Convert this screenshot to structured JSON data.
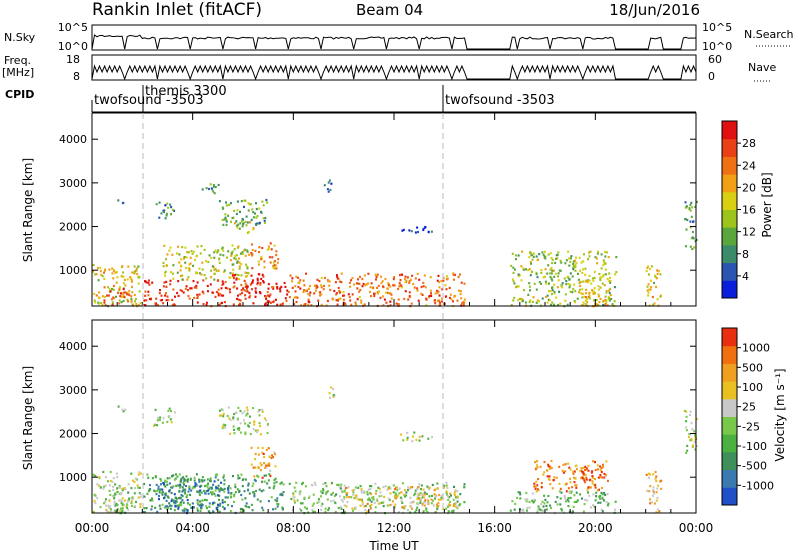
{
  "header": {
    "station": "Rankin Inlet (fitACF)",
    "beam": "Beam 04",
    "date": "18/Jun/2016"
  },
  "top_panels": {
    "nsky_label": "N.Sky",
    "nsky_ticks": [
      "10^5",
      "10^0"
    ],
    "nsearch_label": "N.Search",
    "nsearch_ticks": [
      "10^5",
      "10^0"
    ],
    "freq_label_1": "Freq.",
    "freq_label_2": "[MHz]",
    "freq_ticks": [
      "18",
      "8"
    ],
    "nave_label": "Nave",
    "nave_ticks": [
      "60",
      "0"
    ],
    "cpid_label": "CPID",
    "cpid_segments": [
      {
        "name": "twofsound -3503",
        "start_hour": 0.0
      },
      {
        "name": "themis 3300",
        "start_hour": 2.0
      },
      {
        "name": "twofsound -3503",
        "start_hour": 14.0
      }
    ]
  },
  "chart_data": [
    {
      "type": "heatmap",
      "name": "power",
      "ylabel": "Slant Range [km]",
      "xlabel": "",
      "ylim": [
        180,
        4600
      ],
      "yticks": [
        "1000",
        "2000",
        "3000",
        "4000"
      ],
      "xlim_hours": [
        0,
        24
      ],
      "colorbar_label": "Power [dB]",
      "colorbar_ticks": [
        "4",
        "8",
        "12",
        "16",
        "20",
        "24",
        "28"
      ],
      "colorbar_colors": [
        "#0a1fdc",
        "#2a55b0",
        "#3b8a6a",
        "#5aa53c",
        "#9cc41c",
        "#d8d010",
        "#f0a012",
        "#f07014",
        "#ea4015",
        "#e01010"
      ],
      "regions": [
        {
          "t0": 0.0,
          "t1": 1.9,
          "r0": 200,
          "r1": 1150,
          "level": 0.55
        },
        {
          "t0": 0.3,
          "t1": 1.6,
          "r0": 200,
          "r1": 600,
          "level": 0.85
        },
        {
          "t0": 1.0,
          "t1": 1.3,
          "r0": 2450,
          "r1": 2650,
          "level": 0.2
        },
        {
          "t0": 2.0,
          "t1": 7.8,
          "r0": 200,
          "r1": 800,
          "level": 0.9
        },
        {
          "t0": 2.8,
          "t1": 6.2,
          "r0": 800,
          "r1": 1600,
          "level": 0.5
        },
        {
          "t0": 5.4,
          "t1": 6.8,
          "r0": 700,
          "r1": 950,
          "level": 0.95
        },
        {
          "t0": 6.2,
          "t1": 7.4,
          "r0": 1050,
          "r1": 1650,
          "level": 0.7
        },
        {
          "t0": 2.5,
          "t1": 3.3,
          "r0": 2200,
          "r1": 2600,
          "level": 0.25
        },
        {
          "t0": 4.3,
          "t1": 5.0,
          "r0": 2700,
          "r1": 3000,
          "level": 0.3
        },
        {
          "t0": 5.0,
          "t1": 7.0,
          "r0": 2050,
          "r1": 2650,
          "level": 0.35
        },
        {
          "t0": 5.6,
          "t1": 6.4,
          "r0": 1850,
          "r1": 2150,
          "level": 0.45
        },
        {
          "t0": 7.8,
          "t1": 14.8,
          "r0": 200,
          "r1": 950,
          "level": 0.75
        },
        {
          "t0": 9.2,
          "t1": 9.6,
          "r0": 2800,
          "r1": 3100,
          "level": 0.15
        },
        {
          "t0": 12.2,
          "t1": 13.5,
          "r0": 1850,
          "r1": 2050,
          "level": 0.1
        },
        {
          "t0": 13.7,
          "t1": 14.9,
          "r0": 200,
          "r1": 400,
          "level": 0.8
        },
        {
          "t0": 16.6,
          "t1": 20.8,
          "r0": 200,
          "r1": 1450,
          "level": 0.45
        },
        {
          "t0": 19.3,
          "t1": 20.5,
          "r0": 200,
          "r1": 800,
          "level": 0.6
        },
        {
          "t0": 22.0,
          "t1": 22.6,
          "r0": 200,
          "r1": 1150,
          "level": 0.55
        },
        {
          "t0": 23.5,
          "t1": 24.0,
          "r0": 1500,
          "r1": 2600,
          "level": 0.3
        }
      ]
    },
    {
      "type": "heatmap",
      "name": "velocity",
      "ylabel": "Slant Range [km]",
      "xlabel": "Time UT",
      "ylim": [
        180,
        4600
      ],
      "yticks": [
        "1000",
        "2000",
        "3000",
        "4000"
      ],
      "xlim_hours": [
        0,
        24
      ],
      "xticks": [
        "00:00",
        "04:00",
        "08:00",
        "12:00",
        "16:00",
        "20:00",
        "00:00"
      ],
      "colorbar_label": "Velocity [m s⁻¹]",
      "colorbar_ticks": [
        "1000",
        "500",
        "100",
        "25",
        "-25",
        "-100",
        "-500",
        "-1000"
      ],
      "colorbar_colors": [
        "#2050c8",
        "#3a7ab0",
        "#3e8f5a",
        "#4ab040",
        "#78c84a",
        "#c8c8c8",
        "#e8c020",
        "#f0a020",
        "#f07010",
        "#e83010"
      ],
      "regions": [
        {
          "t0": 0.0,
          "t1": 1.9,
          "r0": 200,
          "r1": 1150,
          "level": 0.5
        },
        {
          "t0": 0.4,
          "t1": 1.7,
          "r0": 200,
          "r1": 800,
          "level": 0.45
        },
        {
          "t0": 1.0,
          "t1": 1.3,
          "r0": 2400,
          "r1": 2650,
          "level": 0.5
        },
        {
          "t0": 2.0,
          "t1": 7.6,
          "r0": 200,
          "r1": 1100,
          "level": 0.3
        },
        {
          "t0": 2.6,
          "t1": 5.4,
          "r0": 200,
          "r1": 1000,
          "level": 0.2
        },
        {
          "t0": 6.3,
          "t1": 7.3,
          "r0": 1000,
          "r1": 1700,
          "level": 0.75
        },
        {
          "t0": 5.0,
          "t1": 7.0,
          "r0": 2000,
          "r1": 2650,
          "level": 0.5
        },
        {
          "t0": 2.4,
          "t1": 3.3,
          "r0": 2200,
          "r1": 2600,
          "level": 0.5
        },
        {
          "t0": 7.8,
          "t1": 14.8,
          "r0": 200,
          "r1": 900,
          "level": 0.45
        },
        {
          "t0": 10.0,
          "t1": 14.5,
          "r0": 300,
          "r1": 800,
          "level": 0.65
        },
        {
          "t0": 9.2,
          "t1": 9.6,
          "r0": 2800,
          "r1": 3100,
          "level": 0.5
        },
        {
          "t0": 12.2,
          "t1": 13.5,
          "r0": 1850,
          "r1": 2050,
          "level": 0.5
        },
        {
          "t0": 16.6,
          "t1": 20.8,
          "r0": 200,
          "r1": 700,
          "level": 0.4
        },
        {
          "t0": 17.5,
          "t1": 20.5,
          "r0": 700,
          "r1": 1400,
          "level": 0.8
        },
        {
          "t0": 19.4,
          "t1": 20.4,
          "r0": 900,
          "r1": 1300,
          "level": 0.95
        },
        {
          "t0": 22.0,
          "t1": 22.6,
          "r0": 200,
          "r1": 1150,
          "level": 0.7
        },
        {
          "t0": 23.5,
          "t1": 24.0,
          "r0": 1500,
          "r1": 2600,
          "level": 0.5
        }
      ]
    }
  ],
  "gaps_hours": [
    [
      14.85,
      16.6
    ],
    [
      20.9,
      22.0
    ],
    [
      22.7,
      23.4
    ]
  ]
}
